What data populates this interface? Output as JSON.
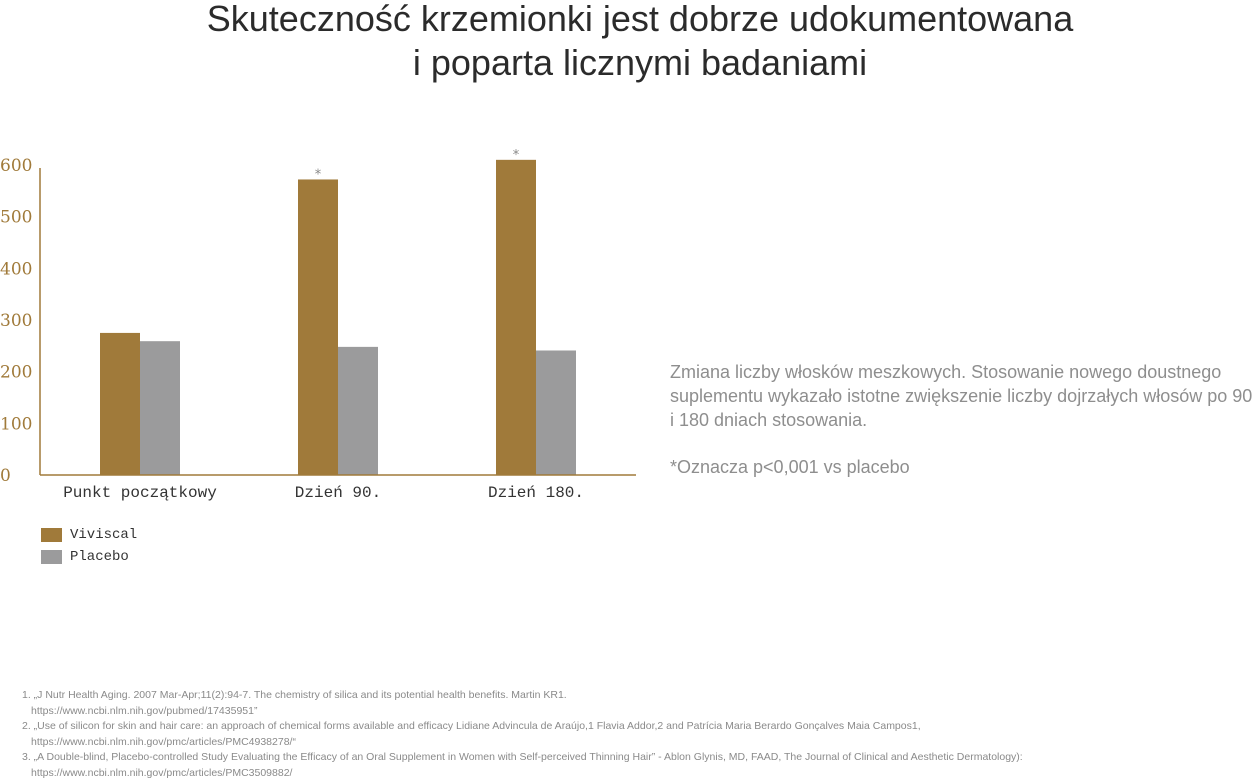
{
  "title_line1": "Skuteczność krzemionki jest dobrze udokumentowana",
  "title_line2": "i poparta licznymi badaniami",
  "colors": {
    "viviscal": "#a07a3a",
    "placebo": "#9b9b9c",
    "axis": "#a07a3a"
  },
  "chart_data": {
    "type": "bar",
    "categories": [
      "Punkt początkowy",
      "Dzień 90.",
      "Dzień 180."
    ],
    "series": [
      {
        "name": "Viviscal",
        "values": [
          275,
          572,
          610
        ]
      },
      {
        "name": "Placebo",
        "values": [
          259,
          248,
          241
        ]
      }
    ],
    "annotations": [
      "",
      "*",
      "*"
    ],
    "yticks": [
      "0",
      "100",
      "200",
      "300",
      "400",
      "500",
      "600"
    ],
    "ylim": [
      0,
      600
    ],
    "title": "",
    "xlabel": "",
    "ylabel": "",
    "grid": false,
    "legend_position": "bottom-left"
  },
  "legend": {
    "viviscal": "Viviscal",
    "placebo": "Placebo"
  },
  "caption": {
    "text": "Zmiana liczby włosków meszkowych. Stosowanie nowego doustnego suplementu wykazało istotne zwiększenie liczby dojrzałych włosów po 90 i 180 dniach stosowania.",
    "note": "*Oznacza p<0,001 vs placebo"
  },
  "references": [
    {
      "text": "1. „J Nutr Health Aging. 2007 Mar-Apr;11(2):94-7. The chemistry of silica and its potential health benefits. Martin KR1.",
      "url": "https://www.ncbi.nlm.nih.gov/pubmed/17435951”"
    },
    {
      "text": "2. „Use of silicon for skin and hair care: an approach of chemical forms available and efficacy Lidiane Advincula de Araújo,1 Flavia Addor,2 and Patrícia Maria Berardo Gonçalves Maia Campos1,",
      "url": "https://www.ncbi.nlm.nih.gov/pmc/articles/PMC4938278/“"
    },
    {
      "text": "3. „A Double-blind, Placebo-controlled Study Evaluating the Efficacy of an Oral Supplement in Women with Self-perceived Thinning Hair” - Ablon Glynis, MD, FAAD, The Journal of Clinical and Aesthetic Dermatology):",
      "url": "https://www.ncbi.nlm.nih.gov/pmc/articles/PMC3509882/"
    }
  ]
}
